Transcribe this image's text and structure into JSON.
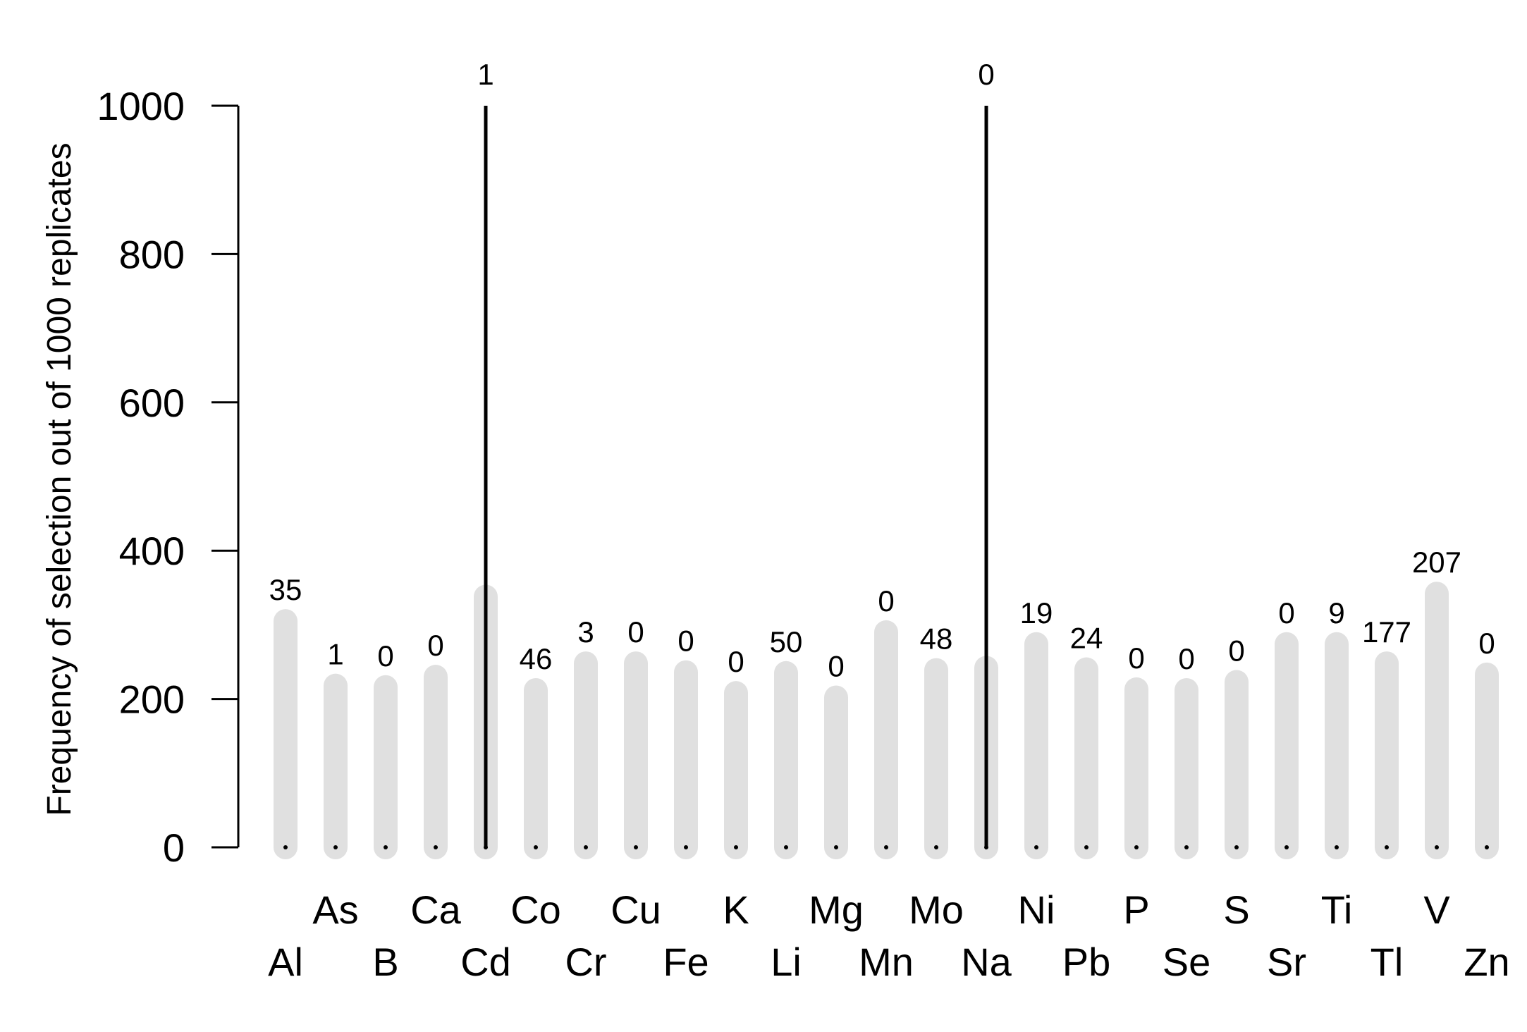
{
  "chart_data": {
    "type": "bar",
    "ylabel": "Frequency of selection out of 1000 replicates",
    "xlabel": "",
    "ylim": [
      0,
      1000
    ],
    "yticks": [
      0,
      200,
      400,
      600,
      800,
      1000
    ],
    "grid": false,
    "categories": [
      "Al",
      "As",
      "B",
      "Ca",
      "Cd",
      "Co",
      "Cr",
      "Cu",
      "Fe",
      "K",
      "Li",
      "Mg",
      "Mn",
      "Mo",
      "Na",
      "Ni",
      "Pb",
      "P",
      "Se",
      "S",
      "Sr",
      "Ti",
      "Tl",
      "V",
      "Zn"
    ],
    "series": [
      {
        "values": [
          305,
          218,
          216,
          230,
          338,
          212,
          248,
          248,
          236,
          208,
          235,
          202,
          290,
          239,
          242,
          274,
          240,
          213,
          212,
          223,
          274,
          274,
          248,
          342,
          233
        ]
      },
      {
        "values": [
          0,
          0,
          0,
          0,
          1000,
          0,
          0,
          0,
          0,
          0,
          0,
          0,
          0,
          0,
          1000,
          0,
          0,
          0,
          0,
          0,
          0,
          0,
          0,
          0,
          0
        ]
      }
    ],
    "data_labels": [
      "35",
      "1",
      "0",
      "0",
      "1",
      "46",
      "3",
      "0",
      "0",
      "0",
      "50",
      "0",
      "0",
      "48",
      "0",
      "19",
      "24",
      "0",
      "0",
      "0",
      "0",
      "9",
      "177",
      "207",
      "0"
    ],
    "colors": {
      "background_bar": "#e0e0e0",
      "selected_bar": "#000000"
    }
  }
}
